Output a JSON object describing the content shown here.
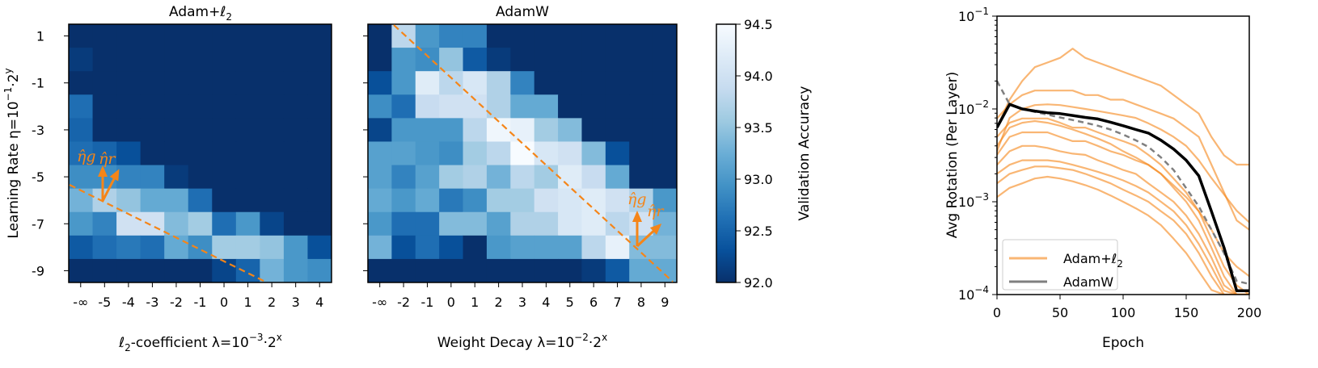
{
  "colors": {
    "accent_orange": "#f58518",
    "adamw_black": "#000000",
    "adamw_dashed": "#7f7f7f",
    "cmap": "Blues",
    "cmap_low": "#08306b",
    "cmap_high": "#f7fbff"
  },
  "chart_data": [
    {
      "type": "heatmap",
      "title": "Adam+ℓ2",
      "title_parts": {
        "main": "Adam+ℓ",
        "sub": "2"
      },
      "xlabel_parts": {
        "a": "ℓ",
        "sub": "2",
        "b": "-coefficient λ=10",
        "sup1": "−3",
        "c": "·2",
        "sup2": "x"
      },
      "ylabel_parts": {
        "a": "Learning Rate η=10",
        "sup1": "−1",
        "b": "·2",
        "sup2": "y"
      },
      "x_categories": [
        "-∞",
        "-5",
        "-4",
        "-3",
        "-2",
        "-1",
        "0",
        "1",
        "2",
        "3",
        "4"
      ],
      "y_categories": [
        "1",
        "0",
        "-1",
        "-2",
        "-3",
        "-4",
        "-5",
        "-6",
        "-7",
        "-8",
        "-9"
      ],
      "y_tick_labels": [
        "1",
        "-1",
        "-3",
        "-5",
        "-7",
        "-9"
      ],
      "values": [
        [
          92.0,
          92.0,
          92.0,
          92.0,
          92.0,
          92.0,
          92.0,
          92.0,
          92.0,
          92.0,
          92.0
        ],
        [
          92.1,
          92.0,
          92.0,
          92.0,
          92.0,
          92.0,
          92.0,
          92.0,
          92.0,
          92.0,
          92.0
        ],
        [
          92.0,
          92.0,
          92.0,
          92.0,
          92.0,
          92.0,
          92.0,
          92.0,
          92.0,
          92.0,
          92.0
        ],
        [
          92.6,
          92.0,
          92.0,
          92.0,
          92.0,
          92.0,
          92.0,
          92.0,
          92.0,
          92.0,
          92.0
        ],
        [
          92.5,
          92.0,
          92.0,
          92.0,
          92.0,
          92.0,
          92.0,
          92.0,
          92.0,
          92.0,
          92.0
        ],
        [
          92.6,
          92.5,
          92.3,
          92.0,
          92.0,
          92.0,
          92.0,
          92.0,
          92.0,
          92.0,
          92.0
        ],
        [
          92.9,
          92.9,
          92.8,
          92.8,
          92.1,
          92.0,
          92.0,
          92.0,
          92.0,
          92.0,
          92.0
        ],
        [
          93.3,
          93.7,
          93.5,
          93.2,
          93.2,
          92.6,
          92.0,
          92.0,
          92.0,
          92.0,
          92.0
        ],
        [
          93.0,
          92.8,
          94.0,
          94.0,
          93.4,
          93.6,
          92.6,
          93.0,
          92.2,
          92.0,
          92.0
        ],
        [
          92.4,
          92.6,
          92.7,
          92.6,
          93.2,
          92.9,
          93.6,
          93.6,
          93.5,
          93.0,
          92.3
        ],
        [
          92.0,
          92.0,
          92.0,
          92.0,
          92.0,
          92.0,
          92.2,
          92.5,
          93.3,
          93.0,
          92.9
        ]
      ],
      "annotations": {
        "eta_g": "η̂g",
        "eta_r": "η̂r"
      }
    },
    {
      "type": "heatmap",
      "title": "AdamW",
      "xlabel_parts": {
        "a": "Weight Decay λ=10",
        "sup1": "−2",
        "b": "·2",
        "sup2": "x"
      },
      "x_categories": [
        "-∞",
        "-2",
        "-1",
        "0",
        "1",
        "2",
        "3",
        "4",
        "5",
        "6",
        "7",
        "8",
        "9"
      ],
      "y_categories": [
        "1",
        "0",
        "-1",
        "-2",
        "-3",
        "-4",
        "-5",
        "-6",
        "-7",
        "-8",
        "-9"
      ],
      "values": [
        [
          92.0,
          93.8,
          93.0,
          92.8,
          92.8,
          92.0,
          92.0,
          92.0,
          92.0,
          92.0,
          92.0,
          92.0,
          92.0
        ],
        [
          92.0,
          93.0,
          92.9,
          93.5,
          92.4,
          92.1,
          92.0,
          92.0,
          92.0,
          92.0,
          92.0,
          92.0,
          92.0
        ],
        [
          92.3,
          93.0,
          94.2,
          93.8,
          94.1,
          93.7,
          92.8,
          92.0,
          92.0,
          92.0,
          92.0,
          92.0,
          92.0
        ],
        [
          92.9,
          92.6,
          93.9,
          94.0,
          94.0,
          93.7,
          93.2,
          93.2,
          92.0,
          92.0,
          92.0,
          92.0,
          92.0
        ],
        [
          92.2,
          93.0,
          93.0,
          93.0,
          93.8,
          94.4,
          94.3,
          93.6,
          93.4,
          92.0,
          92.0,
          92.0,
          92.0
        ],
        [
          93.1,
          93.1,
          93.0,
          92.9,
          93.6,
          93.8,
          94.5,
          94.1,
          94.0,
          93.4,
          92.3,
          92.0,
          92.0
        ],
        [
          93.1,
          92.8,
          93.1,
          93.6,
          93.7,
          93.3,
          93.8,
          93.6,
          94.2,
          93.9,
          93.2,
          92.0,
          92.0
        ],
        [
          93.2,
          93.0,
          93.2,
          92.7,
          92.9,
          93.6,
          93.6,
          94.0,
          94.1,
          94.2,
          94.0,
          93.7,
          93.0
        ],
        [
          93.0,
          92.6,
          92.6,
          93.4,
          93.4,
          93.1,
          93.7,
          93.7,
          94.1,
          94.2,
          93.8,
          94.0,
          93.3
        ],
        [
          93.3,
          92.3,
          92.6,
          92.3,
          92.0,
          93.0,
          93.1,
          93.1,
          93.1,
          93.8,
          94.3,
          93.4,
          93.4
        ],
        [
          92.0,
          92.0,
          92.0,
          92.0,
          92.0,
          92.0,
          92.0,
          92.0,
          92.0,
          92.1,
          92.4,
          93.2,
          93.2
        ]
      ],
      "annotations": {
        "eta_g": "η̂g",
        "eta_r": "η̂r"
      }
    },
    {
      "type": "colorbar",
      "label": "Validation Accuracy",
      "range": [
        92.0,
        94.5
      ],
      "ticks": [
        "92.0",
        "92.5",
        "93.0",
        "93.5",
        "94.0",
        "94.5"
      ]
    },
    {
      "type": "line",
      "ylabel": "Avg Rotation (Per Layer)",
      "xlabel": "Epoch",
      "xlim": [
        0,
        200
      ],
      "ylim": [
        0.0001,
        0.1
      ],
      "yscale": "log",
      "x_ticks": [
        "0",
        "50",
        "100",
        "150",
        "200"
      ],
      "y_ticks": [
        {
          "base": "10",
          "exp": "−1"
        },
        {
          "base": "10",
          "exp": "−2"
        },
        {
          "base": "10",
          "exp": "−3"
        },
        {
          "base": "10",
          "exp": "−4"
        }
      ],
      "legend": {
        "position": "lower-left",
        "entries": [
          {
            "label_main": "Adam+ℓ",
            "label_sub": "2",
            "color": "#f58518"
          },
          {
            "label_main": "AdamW",
            "label_sub": "",
            "color": "#7f7f7f"
          }
        ]
      },
      "x": [
        0,
        10,
        20,
        30,
        40,
        50,
        60,
        70,
        80,
        90,
        100,
        110,
        120,
        130,
        140,
        150,
        160,
        170,
        180,
        190,
        200
      ],
      "series": [
        {
          "group": "Adam+ℓ2",
          "values": [
            0.0063,
            0.0126,
            0.02,
            0.0282,
            0.0316,
            0.0355,
            0.0447,
            0.0355,
            0.0316,
            0.0282,
            0.0251,
            0.0224,
            0.02,
            0.0178,
            0.0141,
            0.0112,
            0.0089,
            0.005,
            0.00316,
            0.00251,
            0.00251
          ]
        },
        {
          "group": "Adam+ℓ2",
          "values": [
            0.0079,
            0.0112,
            0.0141,
            0.0158,
            0.0158,
            0.0158,
            0.0158,
            0.0141,
            0.0141,
            0.0126,
            0.0126,
            0.0112,
            0.01,
            0.0089,
            0.0079,
            0.0063,
            0.005,
            0.00251,
            0.00126,
            0.00063,
            0.0005
          ]
        },
        {
          "group": "Adam+ℓ2",
          "values": [
            0.0035,
            0.008,
            0.01,
            0.011,
            0.0112,
            0.011,
            0.0105,
            0.01,
            0.0095,
            0.009,
            0.0085,
            0.008,
            0.007,
            0.006,
            0.005,
            0.004,
            0.0028,
            0.0018,
            0.0012,
            0.0008,
            0.0006
          ]
        },
        {
          "group": "Adam+ℓ2",
          "values": [
            0.005,
            0.0071,
            0.0079,
            0.0079,
            0.0079,
            0.0071,
            0.0063,
            0.0063,
            0.0056,
            0.005,
            0.0045,
            0.004,
            0.0032,
            0.0025,
            0.00178,
            0.00126,
            0.00079,
            0.0004,
            0.0002,
            0.000126,
            0.0001
          ]
        },
        {
          "group": "Adam+ℓ2",
          "values": [
            0.004,
            0.0063,
            0.0071,
            0.0074,
            0.0071,
            0.0066,
            0.006,
            0.0054,
            0.0048,
            0.0042,
            0.0035,
            0.003,
            0.0025,
            0.002,
            0.0015,
            0.00112,
            0.00079,
            0.0005,
            0.00028,
            0.0002,
            0.000158
          ]
        },
        {
          "group": "Adam+ℓ2",
          "values": [
            0.0032,
            0.005,
            0.0056,
            0.0056,
            0.0056,
            0.005,
            0.0045,
            0.0045,
            0.004,
            0.0035,
            0.0032,
            0.0028,
            0.0025,
            0.002,
            0.00141,
            0.001,
            0.00063,
            0.00032,
            0.000158,
            0.0001,
            0.0001
          ]
        },
        {
          "group": "Adam+ℓ2",
          "values": [
            0.0025,
            0.0035,
            0.004,
            0.004,
            0.0038,
            0.0035,
            0.0033,
            0.0032,
            0.0028,
            0.0025,
            0.0022,
            0.002,
            0.00158,
            0.00126,
            0.001,
            0.00071,
            0.00045,
            0.00025,
            0.000126,
            0.0001,
            0.0001
          ]
        },
        {
          "group": "Adam+ℓ2",
          "values": [
            0.002,
            0.0025,
            0.0028,
            0.0028,
            0.0028,
            0.0027,
            0.0025,
            0.0023,
            0.0021,
            0.0019,
            0.0017,
            0.00148,
            0.00126,
            0.001,
            0.00079,
            0.00056,
            0.00035,
            0.0002,
            0.00011,
            0.0001,
            0.0001
          ]
        },
        {
          "group": "Adam+ℓ2",
          "values": [
            0.00158,
            0.002,
            0.0022,
            0.0024,
            0.0024,
            0.0023,
            0.0022,
            0.002,
            0.00178,
            0.00158,
            0.00135,
            0.00117,
            0.001,
            0.00079,
            0.00063,
            0.00045,
            0.00028,
            0.000158,
            0.0001,
            0.0001,
            0.0001
          ]
        },
        {
          "group": "Adam+ℓ2",
          "values": [
            0.00112,
            0.00141,
            0.00158,
            0.00178,
            0.00186,
            0.00178,
            0.00166,
            0.00151,
            0.00135,
            0.00117,
            0.001,
            0.00085,
            0.00071,
            0.00056,
            0.0004,
            0.00028,
            0.000178,
            0.000112,
            0.0001,
            0.0001,
            0.0001
          ]
        },
        {
          "group": "AdamW",
          "style": "dashed",
          "color": "#7f7f7f",
          "values": [
            0.02,
            0.0112,
            0.01,
            0.0093,
            0.0087,
            0.0081,
            0.0076,
            0.0071,
            0.0066,
            0.006,
            0.0053,
            0.0046,
            0.0039,
            0.003,
            0.0022,
            0.0014,
            0.00089,
            0.0005,
            0.00028,
            0.00014,
            0.00013
          ]
        },
        {
          "group": "AdamW",
          "style": "solid",
          "color": "#000000",
          "values": [
            0.0063,
            0.0112,
            0.01,
            0.0095,
            0.0091,
            0.0089,
            0.0085,
            0.0081,
            0.0078,
            0.0072,
            0.0066,
            0.006,
            0.0055,
            0.0046,
            0.0037,
            0.0028,
            0.0019,
            0.00079,
            0.00032,
            0.00011,
            0.00011
          ]
        }
      ]
    }
  ]
}
